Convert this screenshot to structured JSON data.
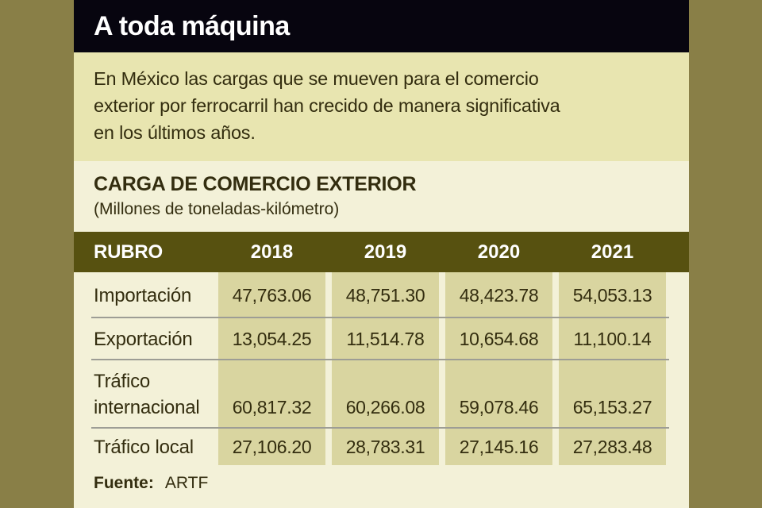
{
  "header": {
    "title": "A toda máquina"
  },
  "intro": {
    "lines": [
      "En México las cargas que se mueven para el comercio",
      "exterior por ferrocarril han crecido de manera significativa",
      "en los últimos años."
    ]
  },
  "section": {
    "title": "CARGA DE COMERCIO EXTERIOR",
    "subtitle": "(Millones de toneladas-kilómetro)"
  },
  "table": {
    "columns": [
      "RUBRO",
      "2018",
      "2019",
      "2020",
      "2021"
    ],
    "rows": [
      {
        "label": "Importación",
        "values": [
          "47,763.06",
          "48,751.30",
          "48,423.78",
          "54,053.13"
        ]
      },
      {
        "label": "Exportación",
        "values": [
          "13,054.25",
          "11,514.78",
          "10,654.68",
          "11,100.14"
        ]
      },
      {
        "label": "Tráfico internacional",
        "values": [
          "60,817.32",
          "60,266.08",
          "59,078.46",
          "65,153.27"
        ]
      },
      {
        "label": "Tráfico local",
        "values": [
          "27,106.20",
          "28,783.31",
          "27,145.16",
          "27,283.48"
        ]
      }
    ],
    "source_label": "Fuente:",
    "source_value": "ARTF"
  },
  "colors": {
    "frame_olive": "#897f47",
    "title_bar_black": "#07050f",
    "intro_khaki": "#e8e5b0",
    "panel_cream": "#f3f1d8",
    "table_header_olive": "#575110",
    "data_band_khaki": "#d9d5a0",
    "divider_gray": "#9d9d95",
    "text_dark": "#332d0f",
    "text_white": "#ffffff"
  },
  "chart_data": {
    "type": "table",
    "title": "CARGA DE COMERCIO EXTERIOR",
    "subtitle": "(Millones de toneladas-kilómetro)",
    "categories": [
      "2018",
      "2019",
      "2020",
      "2021"
    ],
    "series": [
      {
        "name": "Importación",
        "values": [
          47763.06,
          48751.3,
          48423.78,
          54053.13
        ]
      },
      {
        "name": "Exportación",
        "values": [
          13054.25,
          11514.78,
          10654.68,
          11100.14
        ]
      },
      {
        "name": "Tráfico internacional",
        "values": [
          60817.32,
          60266.08,
          59078.46,
          65153.27
        ]
      },
      {
        "name": "Tráfico local",
        "values": [
          27106.2,
          28783.31,
          27145.16,
          27283.48
        ]
      }
    ],
    "source": "Fuente: ARTF"
  }
}
